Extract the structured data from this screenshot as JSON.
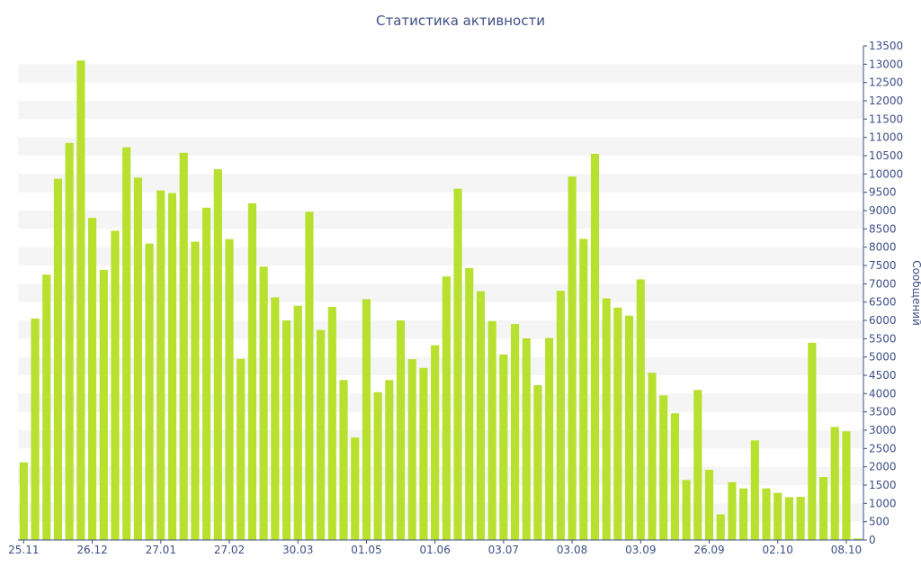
{
  "chart_data": {
    "type": "bar",
    "title": "Статистика активности",
    "ylabel": "Сообщений",
    "xlabel": "",
    "ylim": [
      0,
      13500
    ],
    "y_ticks": [
      0,
      500,
      1000,
      1500,
      2000,
      2500,
      3000,
      3500,
      4000,
      4500,
      5000,
      5500,
      6000,
      6500,
      7000,
      7500,
      8000,
      8500,
      9000,
      9500,
      10000,
      10500,
      11000,
      11500,
      12000,
      12500,
      13000,
      13500
    ],
    "x_ticks": [
      {
        "index": 0,
        "label": "25.11"
      },
      {
        "index": 6,
        "label": "26.12"
      },
      {
        "index": 12,
        "label": "27.01"
      },
      {
        "index": 18,
        "label": "27.02"
      },
      {
        "index": 24,
        "label": "30.03"
      },
      {
        "index": 30,
        "label": "01.05"
      },
      {
        "index": 36,
        "label": "01.06"
      },
      {
        "index": 42,
        "label": "03.07"
      },
      {
        "index": 48,
        "label": "03.08"
      },
      {
        "index": 54,
        "label": "03.09"
      },
      {
        "index": 60,
        "label": "26.09"
      },
      {
        "index": 66,
        "label": "02.10"
      },
      {
        "index": 72,
        "label": "08.10"
      }
    ],
    "values": [
      2120,
      6050,
      7250,
      9870,
      10850,
      13100,
      8800,
      7380,
      8450,
      10730,
      9900,
      8100,
      9550,
      9480,
      10580,
      8150,
      9080,
      10130,
      8220,
      4950,
      9200,
      7470,
      6630,
      6000,
      6400,
      8970,
      5740,
      6370,
      4370,
      2800,
      6580,
      4040,
      4370,
      6000,
      4940,
      4700,
      5320,
      7200,
      9600,
      7430,
      6800,
      5980,
      5070,
      5900,
      5510,
      4230,
      5520,
      6810,
      9930,
      8230,
      10550,
      6600,
      6350,
      6130,
      7120,
      4570,
      3950,
      3460,
      1640,
      4100,
      1920,
      700,
      1580,
      1410,
      2720,
      1410,
      1290,
      1170,
      1180,
      5390,
      1720,
      3090,
      2970,
      40
    ],
    "grid": "alternating horizontal bands",
    "bar_color": "#b8e02e",
    "axis_color": "#3e4f86",
    "band_color": "#f5f5f5"
  }
}
